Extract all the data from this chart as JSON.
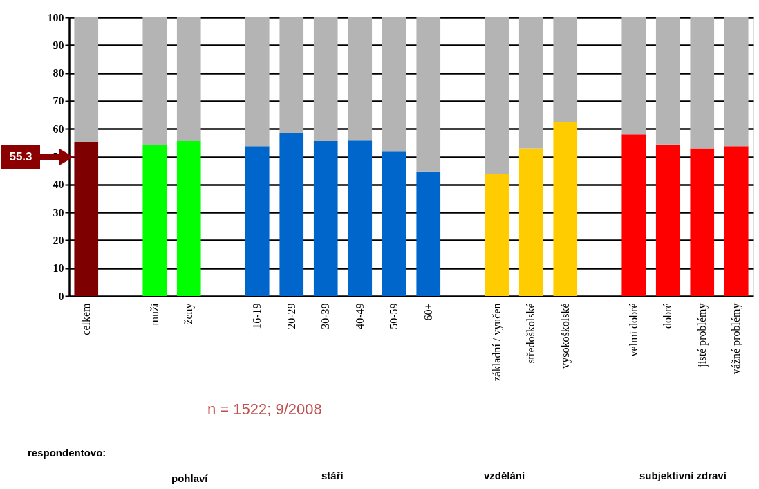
{
  "chart_data": {
    "type": "bar",
    "stacked": true,
    "categories": [
      "celkem",
      null,
      "muži",
      "ženy",
      null,
      "16-19",
      "20-29",
      "30-39",
      "40-49",
      "50-59",
      "60+",
      null,
      "základní / vyučen",
      "středoškolské",
      "vysokoškolské",
      null,
      "velmi dobré",
      "dobré",
      "jisté problémy",
      "vážné problémy"
    ],
    "series": [
      {
        "colors": [
          "#7f0000",
          null,
          "#00ff00",
          "#00ff00",
          null,
          "#0066cc",
          "#0066cc",
          "#0066cc",
          "#0066cc",
          "#0066cc",
          "#0066cc",
          null,
          "#ffcc00",
          "#ffcc00",
          "#ffcc00",
          null,
          "#ff0000",
          "#ff0000",
          "#ff0000",
          "#ff0000"
        ],
        "values": [
          55.3,
          null,
          54.3,
          55.6,
          null,
          53.8,
          58.5,
          55.6,
          55.8,
          51.8,
          44.7,
          null,
          43.9,
          53,
          62.3,
          null,
          58,
          54.4,
          53,
          53.8
        ]
      },
      {
        "color": "#b4b4b4",
        "values": [
          44.7,
          null,
          45.7,
          44.4,
          null,
          46.2,
          41.5,
          44.4,
          44.2,
          48.2,
          55.3,
          null,
          56.1,
          47,
          37.7,
          null,
          42,
          45.6,
          47,
          46.2
        ]
      }
    ],
    "ylim": [
      0,
      100
    ],
    "yticks": [
      0,
      10,
      20,
      30,
      40,
      50,
      60,
      70,
      80,
      90,
      100
    ],
    "grid": "y",
    "legend": false,
    "annotations": [
      "55.3",
      "n = 1522; 9/2008",
      "respondentovo:",
      "pohlaví",
      "stáří",
      "vzdělání",
      "subjektivní zdraví"
    ]
  }
}
